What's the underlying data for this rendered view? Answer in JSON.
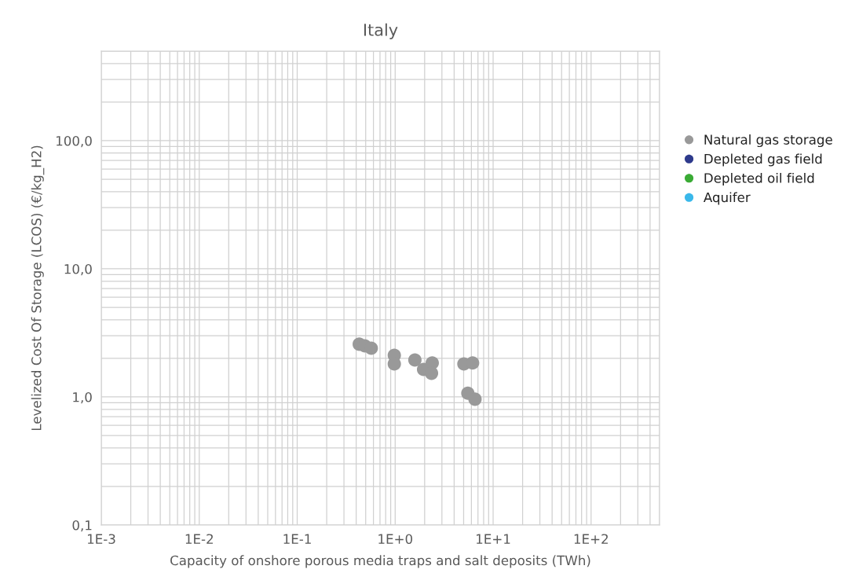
{
  "chart_data": {
    "type": "scatter",
    "title": "Italy",
    "xlabel": "Capacity of onshore porous media traps and salt deposits (TWh)",
    "ylabel": "Levelized Cost Of Storage (LCOS) (€/kg_H2)",
    "log": "xy",
    "xlim": [
      0.001,
      500
    ],
    "ylim": [
      0.1,
      500
    ],
    "xticks": [
      {
        "value": 0.001,
        "label": "1E-3"
      },
      {
        "value": 0.01,
        "label": "1E-2"
      },
      {
        "value": 0.1,
        "label": "1E-1"
      },
      {
        "value": 1,
        "label": "1E+0"
      },
      {
        "value": 10,
        "label": "1E+1"
      },
      {
        "value": 100,
        "label": "1E+2"
      }
    ],
    "yticks": [
      {
        "value": 0.1,
        "label": "0,1"
      },
      {
        "value": 1,
        "label": "1,0"
      },
      {
        "value": 10,
        "label": "10,0"
      },
      {
        "value": 100,
        "label": "100,0"
      }
    ],
    "grid": true,
    "legend": "right",
    "marker": "circle",
    "series": [
      {
        "name": "Natural gas storage",
        "color": "#999999",
        "x": [
          0.43,
          0.49,
          0.57,
          0.98,
          0.98,
          1.59,
          1.95,
          2.39,
          2.35,
          5.03,
          6.17,
          5.52,
          6.53
        ],
        "values": [
          2.58,
          2.5,
          2.4,
          2.11,
          1.81,
          1.94,
          1.64,
          1.84,
          1.53,
          1.81,
          1.84,
          1.07,
          0.96
        ]
      },
      {
        "name": "Depleted gas field",
        "color": "#2e3a8c"
      },
      {
        "name": "Depleted oil field",
        "color": "#3aab35"
      },
      {
        "name": "Aquifer",
        "color": "#3ab8ea"
      }
    ]
  }
}
